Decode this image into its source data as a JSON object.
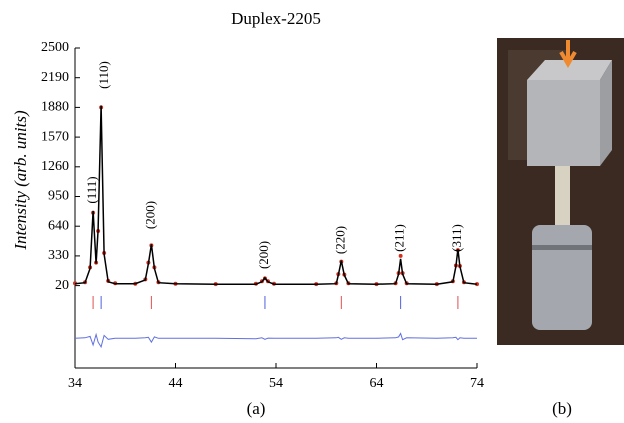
{
  "chart_data": {
    "type": "line",
    "title": "Duplex-2205",
    "ylabel": "Intensity (arb. units)",
    "panel_label": "(a)",
    "xlim": [
      34,
      74
    ],
    "ylim": [
      -840,
      2500
    ],
    "xticks": [
      34,
      44,
      54,
      64,
      74
    ],
    "yticks": [
      20,
      330,
      640,
      950,
      1260,
      1570,
      1880,
      2190,
      2500
    ],
    "x": [
      34,
      35,
      35.5,
      35.8,
      36.1,
      36.3,
      36.6,
      36.9,
      37.3,
      38,
      40,
      41,
      41.3,
      41.6,
      41.9,
      42.3,
      44,
      48,
      52,
      52.6,
      52.9,
      53.2,
      53.8,
      58,
      60,
      60.2,
      60.5,
      60.8,
      61.2,
      64,
      65.9,
      66.2,
      66.4,
      66.6,
      67,
      70,
      71.6,
      71.9,
      72.1,
      72.3,
      72.7,
      74
    ],
    "series": [
      {
        "style": "markers",
        "color": "#d03020",
        "values": [
          45,
          55,
          210,
          780,
          260,
          590,
          1880,
          360,
          70,
          45,
          40,
          85,
          260,
          440,
          210,
          55,
          40,
          35,
          40,
          65,
          95,
          65,
          40,
          35,
          45,
          140,
          270,
          135,
          45,
          35,
          45,
          150,
          330,
          150,
          45,
          35,
          65,
          230,
          390,
          225,
          55,
          35
        ]
      },
      {
        "style": "line",
        "color": "#000000",
        "values": [
          40,
          50,
          200,
          800,
          250,
          600,
          1900,
          350,
          60,
          40,
          40,
          80,
          250,
          450,
          200,
          50,
          40,
          35,
          35,
          60,
          100,
          60,
          35,
          35,
          40,
          130,
          280,
          130,
          40,
          35,
          40,
          140,
          300,
          140,
          40,
          35,
          60,
          220,
          400,
          220,
          50,
          35
        ]
      },
      {
        "style": "line",
        "color": "#6070e0",
        "values": [
          -530,
          -525,
          -510,
          -600,
          -490,
          -570,
          -620,
          -500,
          -540,
          -530,
          -530,
          -525,
          -520,
          -570,
          -515,
          -530,
          -530,
          -530,
          -535,
          -525,
          -540,
          -528,
          -530,
          -530,
          -525,
          -520,
          -540,
          -525,
          -530,
          -530,
          -525,
          -515,
          -480,
          -545,
          -525,
          -530,
          -525,
          -520,
          -545,
          -525,
          -530,
          -530
        ]
      }
    ],
    "reflections": [
      {
        "x": 35.8,
        "color": "#e05050"
      },
      {
        "x": 36.6,
        "color": "#5060e0"
      },
      {
        "x": 41.6,
        "color": "#e05050"
      },
      {
        "x": 52.9,
        "color": "#5060e0"
      },
      {
        "x": 60.5,
        "color": "#e05050"
      },
      {
        "x": 66.4,
        "color": "#5060e0"
      },
      {
        "x": 72.1,
        "color": "#e05050"
      }
    ],
    "annotations": [
      {
        "text": "(111)",
        "x": 35.8,
        "y": 1018
      },
      {
        "text": "(110)",
        "x": 37.0,
        "y": 2218
      },
      {
        "text": "(200)",
        "x": 41.6,
        "y": 757
      },
      {
        "text": "(200)",
        "x": 52.9,
        "y": 340
      },
      {
        "text": "(220)",
        "x": 60.5,
        "y": 496
      },
      {
        "text": "(211)",
        "x": 66.4,
        "y": 517
      },
      {
        "text": "(311)",
        "x": 72.1,
        "y": 517
      }
    ]
  },
  "photo": {
    "label": "(b)"
  }
}
